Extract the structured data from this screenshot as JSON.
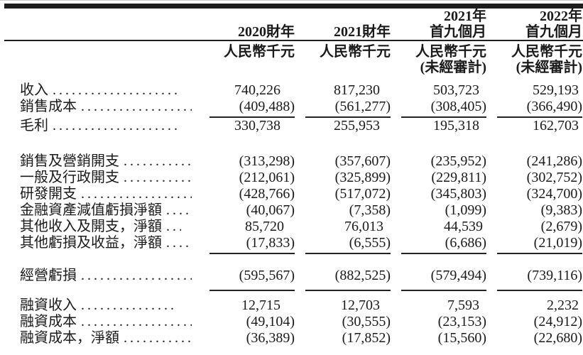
{
  "page": {
    "background": "#ffffff",
    "text_color": "#1a1a1a",
    "heavy_rule_color": "#1d1d1d",
    "thin_rule_color": "#1f1f1f",
    "currency_unit": "人民幣千元"
  },
  "table": {
    "header": {
      "columns": [
        {
          "period_line1": "",
          "period_line2": "2020財年",
          "unit": "人民幣千元",
          "audit_note": ""
        },
        {
          "period_line1": "",
          "period_line2": "2021財年",
          "unit": "人民幣千元",
          "audit_note": ""
        },
        {
          "period_line1": "2021年",
          "period_line2": "首九個月",
          "unit": "人民幣千元",
          "audit_note": "(未經審計)"
        },
        {
          "period_line1": "2022年",
          "period_line2": "首九個月",
          "unit": "人民幣千元",
          "audit_note": "(未經審計)"
        }
      ]
    },
    "rows": [
      {
        "label": "收入",
        "values": [
          "740,226",
          "817,230",
          "503,723",
          "529,193"
        ]
      },
      {
        "label": "銷售成本",
        "values": [
          "(409,488)",
          "(561,277)",
          "(308,405)",
          "(366,490)"
        ],
        "rule_below": true
      },
      {
        "label": "毛利",
        "values": [
          "330,738",
          "255,953",
          "195,318",
          "162,703"
        ]
      },
      {
        "label": "銷售及營銷開支",
        "values": [
          "(313,298)",
          "(357,607)",
          "(235,952)",
          "(241,286)"
        ],
        "gap_before": "lg"
      },
      {
        "label": "一般及行政開支",
        "values": [
          "(212,061)",
          "(325,899)",
          "(229,811)",
          "(302,752)"
        ]
      },
      {
        "label": "研發開支",
        "values": [
          "(428,766)",
          "(517,072)",
          "(345,803)",
          "(324,700)"
        ]
      },
      {
        "label": "金融資產減值虧損淨額",
        "values": [
          "(40,067)",
          "(7,358)",
          "(1,099)",
          "(9,383)"
        ]
      },
      {
        "label": "其他收入及開支，淨額",
        "values": [
          "85,720",
          "76,013",
          "44,539",
          "(2,679)"
        ]
      },
      {
        "label": "其他虧損及收益，淨額",
        "values": [
          "(17,833)",
          "(6,555)",
          "(6,686)",
          "(21,019)"
        ],
        "rule_below": true
      },
      {
        "label": "經營虧損",
        "values": [
          "(595,567)",
          "(882,525)",
          "(579,494)",
          "(739,116)"
        ],
        "gap_before": "md",
        "rule_below": true,
        "rule_pad": true
      },
      {
        "label": "融資收入",
        "values": [
          "12,715",
          "12,703",
          "7,593",
          "2,232"
        ],
        "gap_before": "sm"
      },
      {
        "label": "融資成本",
        "values": [
          "(49,104)",
          "(30,555)",
          "(23,153)",
          "(24,912)"
        ]
      },
      {
        "label": "融資成本，淨額",
        "values": [
          "(36,389)",
          "(17,852)",
          "(15,560)",
          "(22,680)"
        ]
      }
    ]
  }
}
